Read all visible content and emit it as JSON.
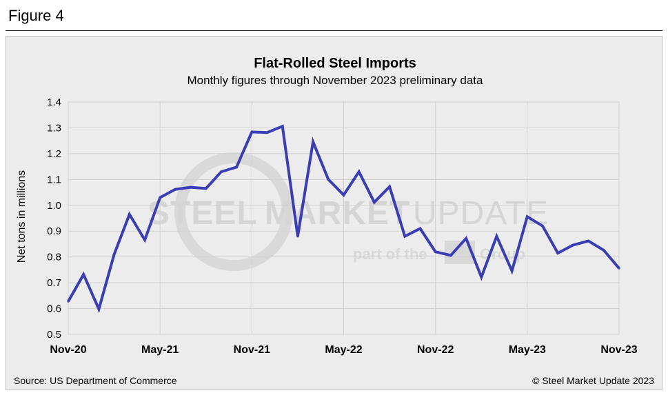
{
  "figure_label": "Figure 4",
  "colors": {
    "line": "#3a3db4",
    "grid": "#d2d2d2",
    "panel": "#ececec",
    "watermark": "#d5d5d5"
  },
  "watermark": {
    "part1": "STEEL",
    "part2": "MARKET",
    "part3": "UPDATE",
    "tagline": "part of the",
    "tagline_end": "Group"
  },
  "footer": {
    "source": "Source: US Department of Commerce",
    "copyright": "© Steel Market Update 2023"
  },
  "chart_data": {
    "type": "line",
    "title": "Flat-Rolled Steel Imports",
    "subtitle": "Monthly figures through November 2023 preliminary data",
    "xlabel": "",
    "ylabel": "Net tons in millions",
    "ylim": [
      0.5,
      1.4
    ],
    "yticks": [
      "0.5",
      "0.6",
      "0.7",
      "0.8",
      "0.9",
      "1.0",
      "1.1",
      "1.2",
      "1.3",
      "1.4"
    ],
    "xtick_labels": [
      "Nov-20",
      "May-21",
      "Nov-21",
      "May-22",
      "Nov-22",
      "May-23",
      "Nov-23"
    ],
    "xtick_index": [
      0,
      6,
      12,
      18,
      24,
      30,
      36
    ],
    "grid": true,
    "categories": [
      "Nov-20",
      "Dec-20",
      "Jan-21",
      "Feb-21",
      "Mar-21",
      "Apr-21",
      "May-21",
      "Jun-21",
      "Jul-21",
      "Aug-21",
      "Sep-21",
      "Oct-21",
      "Nov-21",
      "Dec-21",
      "Jan-22",
      "Feb-22",
      "Mar-22",
      "Apr-22",
      "May-22",
      "Jun-22",
      "Jul-22",
      "Aug-22",
      "Sep-22",
      "Oct-22",
      "Nov-22",
      "Dec-22",
      "Jan-23",
      "Feb-23",
      "Mar-23",
      "Apr-23",
      "May-23",
      "Jun-23",
      "Jul-23",
      "Aug-23",
      "Sep-23",
      "Oct-23",
      "Nov-23"
    ],
    "series": [
      {
        "name": "Flat-Rolled Steel Imports",
        "values": [
          0.628,
          0.732,
          0.598,
          0.81,
          0.965,
          0.866,
          1.03,
          1.062,
          1.07,
          1.065,
          1.13,
          1.148,
          1.284,
          1.282,
          1.306,
          0.88,
          1.246,
          1.1,
          1.04,
          1.13,
          1.012,
          1.072,
          0.88,
          0.91,
          0.82,
          0.806,
          0.872,
          0.722,
          0.88,
          0.746,
          0.956,
          0.92,
          0.815,
          0.846,
          0.862,
          0.826,
          0.756
        ]
      }
    ]
  }
}
